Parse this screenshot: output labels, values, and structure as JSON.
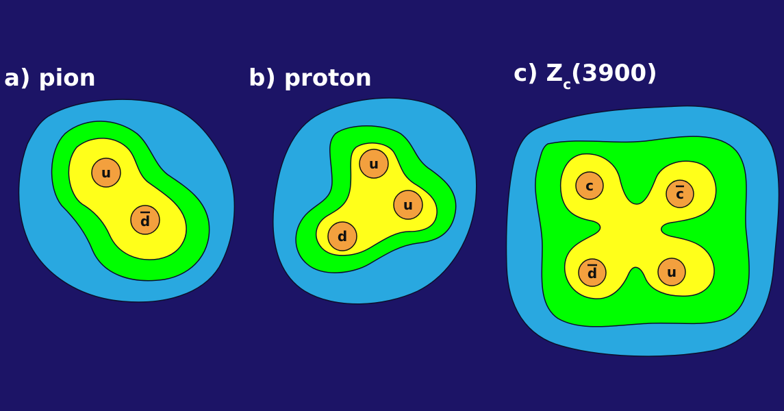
{
  "colors": {
    "background": "#1c1466",
    "outer_cloud": "#29a8e0",
    "middle_cloud": "#00ff00",
    "inner_cloud": "#ffff1a",
    "quark": "#f3a03e"
  },
  "panels": {
    "a": {
      "title": "a) pion",
      "quarks": {
        "q1": "u",
        "q2": "d"
      },
      "antiquarks": [
        "d"
      ]
    },
    "b": {
      "title": "b) proton",
      "quarks": {
        "q1": "u",
        "q2": "u",
        "q3": "d"
      }
    },
    "c": {
      "title_prefix": "c) Z",
      "title_subscript": "c",
      "title_suffix": "(3900)",
      "quarks": {
        "q1": "c",
        "q2": "c",
        "q3": "d",
        "q4": "u"
      },
      "antiquarks": [
        "c",
        "d"
      ]
    }
  }
}
